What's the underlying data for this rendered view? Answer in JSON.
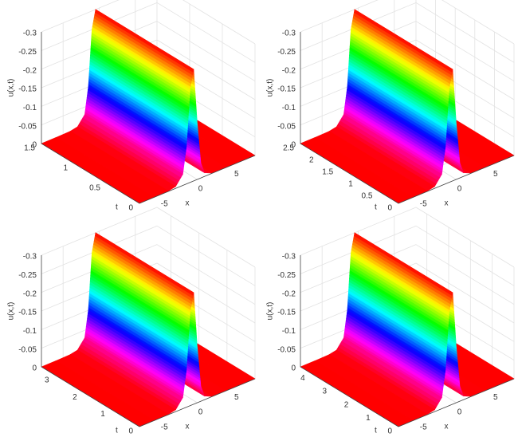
{
  "chart_data": [
    {
      "type": "surface",
      "xlabel": "x",
      "ylabel": "t",
      "zlabel": "u(x,t)",
      "x": [
        -8,
        -6,
        -4,
        -3,
        -2,
        -1.5,
        -1,
        -0.5,
        0,
        0.5,
        1,
        2,
        4,
        6,
        8
      ],
      "values": [
        0,
        0,
        -0.001,
        -0.005,
        -0.03,
        -0.1,
        -0.25,
        -0.3,
        -0.15,
        -0.04,
        -0.01,
        -0.001,
        0,
        0,
        0
      ],
      "xlim": [
        -8,
        8
      ],
      "ylim": [
        0,
        1.5
      ],
      "zlim": [
        -0.3,
        0
      ],
      "z_reversed": true,
      "xticks": [
        -5,
        0,
        5
      ],
      "yticks": [
        0,
        0.5,
        1,
        1.5
      ],
      "zticks": [
        0,
        -0.05,
        -0.1,
        -0.15,
        -0.2,
        -0.25,
        -0.3
      ],
      "colormap": "hsv",
      "grid": true
    },
    {
      "type": "surface",
      "xlabel": "x",
      "ylabel": "t",
      "zlabel": "u(x,t)",
      "x": [
        -8,
        -6,
        -4,
        -3,
        -2,
        -1.5,
        -1,
        -0.5,
        0,
        0.5,
        1,
        2,
        4,
        6,
        8
      ],
      "values": [
        0,
        0,
        -0.001,
        -0.005,
        -0.03,
        -0.1,
        -0.25,
        -0.3,
        -0.15,
        -0.04,
        -0.01,
        -0.001,
        0,
        0,
        0
      ],
      "xlim": [
        -8,
        8
      ],
      "ylim": [
        0,
        2.5
      ],
      "zlim": [
        -0.3,
        0
      ],
      "z_reversed": true,
      "xticks": [
        -5,
        0,
        5
      ],
      "yticks": [
        0,
        0.5,
        1,
        1.5,
        2,
        2.5
      ],
      "zticks": [
        0,
        -0.05,
        -0.1,
        -0.15,
        -0.2,
        -0.25,
        -0.3
      ],
      "colormap": "hsv",
      "grid": true
    },
    {
      "type": "surface",
      "xlabel": "x",
      "ylabel": "t",
      "zlabel": "u(x,t)",
      "x": [
        -8,
        -6,
        -4,
        -3,
        -2,
        -1.5,
        -1,
        -0.5,
        0,
        0.5,
        1,
        2,
        4,
        6,
        8
      ],
      "values": [
        0,
        0,
        -0.001,
        -0.005,
        -0.03,
        -0.1,
        -0.25,
        -0.3,
        -0.15,
        -0.04,
        -0.01,
        -0.001,
        0,
        0,
        0
      ],
      "xlim": [
        -8,
        8
      ],
      "ylim": [
        0,
        3.5
      ],
      "zlim": [
        -0.3,
        0
      ],
      "z_reversed": true,
      "xticks": [
        -5,
        0,
        5
      ],
      "yticks": [
        0,
        1,
        2,
        3
      ],
      "zticks": [
        0,
        -0.05,
        -0.1,
        -0.15,
        -0.2,
        -0.25,
        -0.3
      ],
      "colormap": "hsv",
      "grid": true
    },
    {
      "type": "surface",
      "xlabel": "x",
      "ylabel": "t",
      "zlabel": "u(x,t)",
      "x": [
        -8,
        -6,
        -4,
        -3,
        -2,
        -1.5,
        -1,
        -0.5,
        0,
        0.5,
        1,
        2,
        4,
        6,
        8
      ],
      "values": [
        0,
        0,
        -0.001,
        -0.005,
        -0.03,
        -0.1,
        -0.25,
        -0.3,
        -0.15,
        -0.04,
        -0.01,
        -0.001,
        0,
        0,
        0
      ],
      "xlim": [
        -8,
        8
      ],
      "ylim": [
        0,
        4.5
      ],
      "zlim": [
        -0.3,
        0
      ],
      "z_reversed": true,
      "xticks": [
        -5,
        0,
        5
      ],
      "yticks": [
        0,
        1,
        2,
        3,
        4
      ],
      "zticks": [
        0,
        -0.05,
        -0.1,
        -0.15,
        -0.2,
        -0.25,
        -0.3
      ],
      "colormap": "hsv",
      "grid": true
    }
  ]
}
